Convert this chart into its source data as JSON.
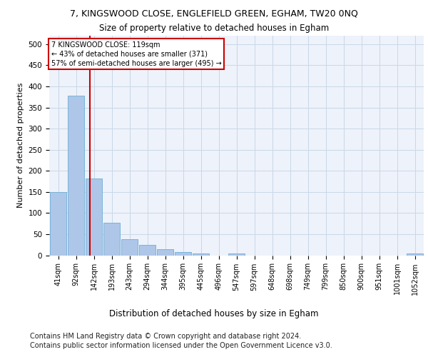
{
  "title1": "7, KINGSWOOD CLOSE, ENGLEFIELD GREEN, EGHAM, TW20 0NQ",
  "title2": "Size of property relative to detached houses in Egham",
  "xlabel": "Distribution of detached houses by size in Egham",
  "ylabel": "Number of detached properties",
  "footer1": "Contains HM Land Registry data © Crown copyright and database right 2024.",
  "footer2": "Contains public sector information licensed under the Open Government Licence v3.0.",
  "categories": [
    "41sqm",
    "92sqm",
    "142sqm",
    "193sqm",
    "243sqm",
    "294sqm",
    "344sqm",
    "395sqm",
    "445sqm",
    "496sqm",
    "547sqm",
    "597sqm",
    "648sqm",
    "698sqm",
    "749sqm",
    "799sqm",
    "850sqm",
    "900sqm",
    "951sqm",
    "1001sqm",
    "1052sqm"
  ],
  "values": [
    150,
    378,
    182,
    77,
    38,
    24,
    15,
    7,
    5,
    0,
    5,
    0,
    0,
    0,
    0,
    0,
    0,
    0,
    0,
    0,
    5
  ],
  "bar_color": "#aec6e8",
  "bar_edge_color": "#6baed6",
  "grid_color": "#c8d8e8",
  "property_line_x": 1.78,
  "annotation_text": "7 KINGSWOOD CLOSE: 119sqm\n← 43% of detached houses are smaller (371)\n57% of semi-detached houses are larger (495) →",
  "annotation_box_color": "#ffffff",
  "annotation_box_edge": "#cc0000",
  "property_line_color": "#cc0000",
  "ylim": [
    0,
    520
  ],
  "yticks": [
    0,
    50,
    100,
    150,
    200,
    250,
    300,
    350,
    400,
    450,
    500
  ],
  "background_color": "#eef2fa",
  "title1_fontsize": 9,
  "title2_fontsize": 8.5,
  "xlabel_fontsize": 8.5,
  "ylabel_fontsize": 8,
  "footer_fontsize": 7,
  "tick_fontsize": 7,
  "ytick_fontsize": 7.5
}
